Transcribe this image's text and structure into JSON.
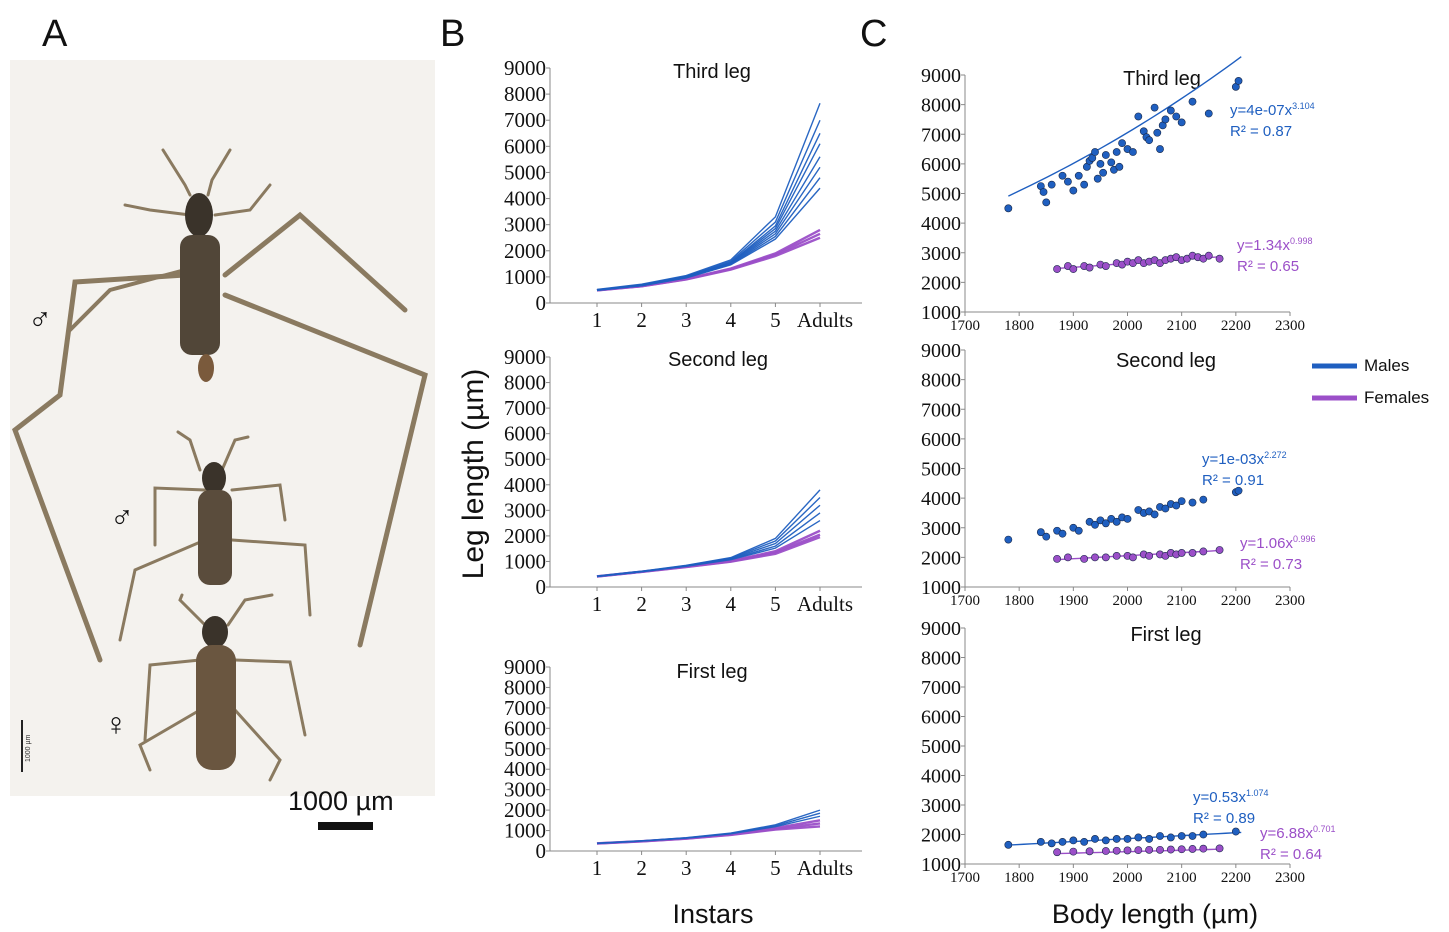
{
  "panels": {
    "a": "A",
    "b": "B",
    "c": "C"
  },
  "photo": {
    "sex_symbols": [
      "♂",
      "♂",
      "♀"
    ],
    "scale_bar_label": "1000 µm",
    "inner_scale_label": "1000 µm"
  },
  "axes": {
    "b_ylabel": "Leg length (µm)",
    "b_xlabel": "Instars",
    "c_xlabel": "Body length (µm)",
    "instar_ticks": [
      "1",
      "2",
      "3",
      "4",
      "5",
      "Adults"
    ],
    "leg_yticks": [
      0,
      1000,
      2000,
      3000,
      4000,
      5000,
      6000,
      7000,
      8000,
      9000
    ],
    "body_xticks": [
      1700,
      1800,
      1900,
      2000,
      2100,
      2200,
      2300
    ],
    "body_yticks": [
      1000,
      2000,
      3000,
      4000,
      5000,
      6000,
      7000,
      8000,
      9000
    ]
  },
  "legend": {
    "males": "Males",
    "females": "Females",
    "male_color": "#1f5fc0",
    "female_color": "#9b4fc8"
  },
  "chart_data": [
    {
      "id": "B-third",
      "type": "line",
      "title": "Third leg",
      "categories": [
        "1",
        "2",
        "3",
        "4",
        "5",
        "Adults"
      ],
      "ylim": [
        0,
        9000
      ],
      "series": [
        {
          "group": "males",
          "values": [
            520,
            720,
            1050,
            1650,
            3300,
            7650
          ]
        },
        {
          "group": "males",
          "values": [
            510,
            700,
            1030,
            1600,
            3100,
            7000
          ]
        },
        {
          "group": "males",
          "values": [
            500,
            690,
            1010,
            1560,
            2950,
            6500
          ]
        },
        {
          "group": "males",
          "values": [
            500,
            685,
            1000,
            1540,
            2850,
            6100
          ]
        },
        {
          "group": "males",
          "values": [
            495,
            680,
            990,
            1520,
            2750,
            5600
          ]
        },
        {
          "group": "males",
          "values": [
            490,
            670,
            980,
            1500,
            2650,
            5200
          ]
        },
        {
          "group": "males",
          "values": [
            485,
            665,
            970,
            1480,
            2550,
            4800
          ]
        },
        {
          "group": "males",
          "values": [
            480,
            660,
            960,
            1460,
            2450,
            4400
          ]
        },
        {
          "group": "females",
          "values": [
            490,
            650,
            920,
            1320,
            1900,
            2800
          ]
        },
        {
          "group": "females",
          "values": [
            485,
            645,
            910,
            1300,
            1850,
            2650
          ]
        },
        {
          "group": "females",
          "values": [
            480,
            640,
            900,
            1280,
            1800,
            2500
          ]
        }
      ]
    },
    {
      "id": "B-second",
      "type": "line",
      "title": "Second leg",
      "categories": [
        "1",
        "2",
        "3",
        "4",
        "5",
        "Adults"
      ],
      "ylim": [
        0,
        9000
      ],
      "series": [
        {
          "group": "males",
          "values": [
            430,
            620,
            850,
            1150,
            1900,
            3800
          ]
        },
        {
          "group": "males",
          "values": [
            425,
            610,
            840,
            1130,
            1800,
            3500
          ]
        },
        {
          "group": "males",
          "values": [
            420,
            605,
            830,
            1110,
            1700,
            3200
          ]
        },
        {
          "group": "males",
          "values": [
            415,
            600,
            820,
            1090,
            1600,
            2900
          ]
        },
        {
          "group": "males",
          "values": [
            410,
            595,
            810,
            1070,
            1520,
            2600
          ]
        },
        {
          "group": "females",
          "values": [
            420,
            600,
            800,
            1020,
            1400,
            2200
          ]
        },
        {
          "group": "females",
          "values": [
            415,
            595,
            790,
            1000,
            1350,
            2050
          ]
        },
        {
          "group": "females",
          "values": [
            410,
            590,
            780,
            990,
            1300,
            1950
          ]
        }
      ]
    },
    {
      "id": "B-first",
      "type": "line",
      "title": "First leg",
      "categories": [
        "1",
        "2",
        "3",
        "4",
        "5",
        "Adults"
      ],
      "ylim": [
        0,
        9000
      ],
      "series": [
        {
          "group": "males",
          "values": [
            380,
            500,
            650,
            880,
            1280,
            2000
          ]
        },
        {
          "group": "males",
          "values": [
            375,
            490,
            640,
            860,
            1230,
            1850
          ]
        },
        {
          "group": "males",
          "values": [
            370,
            485,
            630,
            840,
            1190,
            1700
          ]
        },
        {
          "group": "females",
          "values": [
            375,
            480,
            620,
            820,
            1120,
            1500
          ]
        },
        {
          "group": "females",
          "values": [
            370,
            475,
            610,
            800,
            1080,
            1350
          ]
        },
        {
          "group": "females",
          "values": [
            365,
            470,
            600,
            785,
            1050,
            1200
          ]
        }
      ]
    },
    {
      "id": "C-third",
      "type": "scatter",
      "title": "Third leg",
      "xlim": [
        1700,
        2300
      ],
      "ylim": [
        1000,
        9000
      ],
      "series": [
        {
          "group": "males",
          "equation": "y=4e-07x",
          "exponent": "3.104",
          "r2": "R² = 0.87",
          "fit": {
            "a": 4e-07,
            "b": 3.104,
            "x": [
              1780,
              2210
            ]
          },
          "points": [
            [
              1780,
              4500
            ],
            [
              1840,
              5250
            ],
            [
              1845,
              5050
            ],
            [
              1850,
              4700
            ],
            [
              1860,
              5300
            ],
            [
              1880,
              5600
            ],
            [
              1890,
              5400
            ],
            [
              1900,
              5100
            ],
            [
              1910,
              5600
            ],
            [
              1920,
              5300
            ],
            [
              1925,
              5900
            ],
            [
              1930,
              6100
            ],
            [
              1935,
              6200
            ],
            [
              1940,
              6400
            ],
            [
              1945,
              5500
            ],
            [
              1950,
              6000
            ],
            [
              1955,
              5700
            ],
            [
              1960,
              6300
            ],
            [
              1970,
              6050
            ],
            [
              1975,
              5800
            ],
            [
              1980,
              6400
            ],
            [
              1985,
              5900
            ],
            [
              1990,
              6700
            ],
            [
              2000,
              6500
            ],
            [
              2010,
              6400
            ],
            [
              2020,
              7600
            ],
            [
              2030,
              7100
            ],
            [
              2035,
              6900
            ],
            [
              2040,
              6800
            ],
            [
              2050,
              7900
            ],
            [
              2055,
              7050
            ],
            [
              2060,
              6500
            ],
            [
              2065,
              7300
            ],
            [
              2070,
              7500
            ],
            [
              2080,
              7800
            ],
            [
              2090,
              7600
            ],
            [
              2100,
              7400
            ],
            [
              2120,
              8100
            ],
            [
              2150,
              7700
            ],
            [
              2200,
              8600
            ],
            [
              2205,
              8800
            ]
          ]
        },
        {
          "group": "females",
          "equation": "y=1.34x",
          "exponent": "0.998",
          "r2": "R² = 0.65",
          "fit": {
            "a": 1.34,
            "b": 0.998,
            "x": [
              1870,
              2170
            ]
          },
          "points": [
            [
              1870,
              2450
            ],
            [
              1890,
              2550
            ],
            [
              1900,
              2450
            ],
            [
              1920,
              2550
            ],
            [
              1930,
              2500
            ],
            [
              1950,
              2600
            ],
            [
              1960,
              2550
            ],
            [
              1980,
              2650
            ],
            [
              1990,
              2600
            ],
            [
              2000,
              2700
            ],
            [
              2010,
              2650
            ],
            [
              2020,
              2750
            ],
            [
              2030,
              2650
            ],
            [
              2040,
              2700
            ],
            [
              2050,
              2750
            ],
            [
              2060,
              2650
            ],
            [
              2070,
              2750
            ],
            [
              2080,
              2800
            ],
            [
              2090,
              2850
            ],
            [
              2100,
              2750
            ],
            [
              2110,
              2800
            ],
            [
              2120,
              2900
            ],
            [
              2130,
              2850
            ],
            [
              2140,
              2800
            ],
            [
              2150,
              2900
            ],
            [
              2170,
              2800
            ]
          ]
        }
      ]
    },
    {
      "id": "C-second",
      "type": "scatter",
      "title": "Second leg",
      "xlim": [
        1700,
        2300
      ],
      "ylim": [
        1000,
        9000
      ],
      "series": [
        {
          "group": "males",
          "equation": "y=1e-03x",
          "exponent": "2.272",
          "r2": "R² = 0.91",
          "fit": {
            "a": 0.001,
            "b": 2.272,
            "x": [
              1780,
              2210
            ]
          },
          "points": [
            [
              1780,
              2600
            ],
            [
              1840,
              2850
            ],
            [
              1850,
              2700
            ],
            [
              1870,
              2900
            ],
            [
              1880,
              2800
            ],
            [
              1900,
              3000
            ],
            [
              1910,
              2900
            ],
            [
              1930,
              3200
            ],
            [
              1940,
              3100
            ],
            [
              1950,
              3250
            ],
            [
              1960,
              3150
            ],
            [
              1970,
              3300
            ],
            [
              1980,
              3200
            ],
            [
              1990,
              3350
            ],
            [
              2000,
              3300
            ],
            [
              2020,
              3600
            ],
            [
              2030,
              3500
            ],
            [
              2040,
              3550
            ],
            [
              2050,
              3450
            ],
            [
              2060,
              3700
            ],
            [
              2070,
              3650
            ],
            [
              2080,
              3800
            ],
            [
              2090,
              3750
            ],
            [
              2100,
              3900
            ],
            [
              2120,
              3850
            ],
            [
              2140,
              3950
            ],
            [
              2200,
              4200
            ],
            [
              2205,
              4250
            ]
          ]
        },
        {
          "group": "females",
          "equation": "y=1.06x",
          "exponent": "0.996",
          "r2": "R² = 0.73",
          "fit": {
            "a": 1.06,
            "b": 0.996,
            "x": [
              1870,
              2170
            ]
          },
          "points": [
            [
              1870,
              1950
            ],
            [
              1890,
              2000
            ],
            [
              1920,
              1950
            ],
            [
              1940,
              2000
            ],
            [
              1960,
              2000
            ],
            [
              1980,
              2050
            ],
            [
              2000,
              2050
            ],
            [
              2010,
              2000
            ],
            [
              2030,
              2100
            ],
            [
              2040,
              2050
            ],
            [
              2060,
              2100
            ],
            [
              2070,
              2050
            ],
            [
              2080,
              2150
            ],
            [
              2090,
              2100
            ],
            [
              2100,
              2150
            ],
            [
              2120,
              2150
            ],
            [
              2140,
              2200
            ],
            [
              2170,
              2250
            ]
          ]
        }
      ]
    },
    {
      "id": "C-first",
      "type": "scatter",
      "title": "First leg",
      "xlim": [
        1700,
        2300
      ],
      "ylim": [
        1000,
        9000
      ],
      "series": [
        {
          "group": "males",
          "equation": "y=0.53x",
          "exponent": "1.074",
          "r2": "R² = 0.89",
          "fit": {
            "a": 0.53,
            "b": 1.074,
            "x": [
              1780,
              2210
            ]
          },
          "points": [
            [
              1780,
              1650
            ],
            [
              1840,
              1750
            ],
            [
              1860,
              1700
            ],
            [
              1880,
              1750
            ],
            [
              1900,
              1800
            ],
            [
              1920,
              1750
            ],
            [
              1940,
              1850
            ],
            [
              1960,
              1800
            ],
            [
              1980,
              1850
            ],
            [
              2000,
              1850
            ],
            [
              2020,
              1900
            ],
            [
              2040,
              1850
            ],
            [
              2060,
              1950
            ],
            [
              2080,
              1900
            ],
            [
              2100,
              1950
            ],
            [
              2120,
              1950
            ],
            [
              2140,
              2000
            ],
            [
              2200,
              2100
            ]
          ]
        },
        {
          "group": "females",
          "equation": "y=6.88x",
          "exponent": "0.701",
          "r2": "R² = 0.64",
          "fit": {
            "a": 6.88,
            "b": 0.701,
            "x": [
              1870,
              2170
            ]
          },
          "points": [
            [
              1870,
              1400
            ],
            [
              1900,
              1420
            ],
            [
              1930,
              1430
            ],
            [
              1960,
              1440
            ],
            [
              1980,
              1450
            ],
            [
              2000,
              1460
            ],
            [
              2020,
              1470
            ],
            [
              2040,
              1480
            ],
            [
              2060,
              1480
            ],
            [
              2080,
              1490
            ],
            [
              2100,
              1500
            ],
            [
              2120,
              1510
            ],
            [
              2140,
              1520
            ],
            [
              2170,
              1530
            ]
          ]
        }
      ]
    }
  ]
}
